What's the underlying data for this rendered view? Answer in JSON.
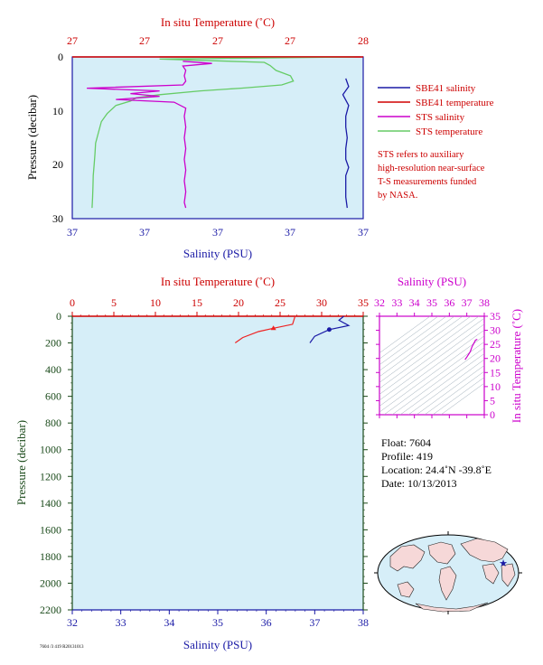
{
  "chart_data": [
    {
      "type": "line",
      "top_axis": {
        "label": "In situ Temperature (˚C)",
        "ticks": [
          "27",
          "27",
          "27",
          "27",
          "28"
        ]
      },
      "bottom_axis": {
        "label": "Salinity (PSU)",
        "ticks": [
          "37",
          "37",
          "37",
          "37",
          "37"
        ]
      },
      "left_axis": {
        "label": "Pressure (decibar)",
        "ticks": [
          "0",
          "10",
          "20",
          "30"
        ],
        "ylim": [
          0,
          30
        ]
      },
      "legend": {
        "placement": "right",
        "entries": [
          {
            "label": "SBE41 salinity",
            "color": "#1a1aa6"
          },
          {
            "label": "SBE41 temperature",
            "color": "#d00000"
          },
          {
            "label": "STS salinity",
            "color": "#cc00cc"
          },
          {
            "label": "STS temperature",
            "color": "#66cc66"
          }
        ]
      },
      "note": [
        "STS refers to auxiliary",
        "high-resolution near-surface",
        "T-S measurements funded",
        "by NASA."
      ],
      "series": [
        {
          "name": "STS temperature",
          "color": "#66cc66",
          "points": [
            [
              0.0,
              0.97
            ],
            [
              0.4,
              0.3
            ],
            [
              1.0,
              0.66
            ],
            [
              1.6,
              0.68
            ],
            [
              2.5,
              0.7
            ],
            [
              3.5,
              0.75
            ],
            [
              4.5,
              0.76
            ],
            [
              5.2,
              0.72
            ],
            [
              5.8,
              0.58
            ],
            [
              6.3,
              0.44
            ],
            [
              7.0,
              0.3
            ],
            [
              7.6,
              0.22
            ],
            [
              8.2,
              0.2
            ],
            [
              9.0,
              0.15
            ],
            [
              10.5,
              0.12
            ],
            [
              12,
              0.1
            ],
            [
              14,
              0.09
            ],
            [
              16,
              0.08
            ],
            [
              18,
              0.078
            ],
            [
              20,
              0.075
            ],
            [
              22,
              0.072
            ],
            [
              24,
              0.071
            ],
            [
              26,
              0.07
            ],
            [
              28,
              0.068
            ]
          ]
        },
        {
          "name": "SBE41 temperature",
          "color": "#d00000",
          "points": [
            [
              0.0,
              0.99
            ],
            [
              0.0,
              0.3
            ]
          ]
        },
        {
          "name": "STS salinity",
          "color": "#cc00cc",
          "points": [
            [
              0.8,
              0.38
            ],
            [
              1.2,
              0.48
            ],
            [
              1.7,
              0.38
            ],
            [
              2.5,
              0.39
            ],
            [
              3.5,
              0.385
            ],
            [
              4.5,
              0.39
            ],
            [
              5.2,
              0.38
            ],
            [
              5.8,
              0.05
            ],
            [
              6.3,
              0.3
            ],
            [
              6.8,
              0.2
            ],
            [
              7.3,
              0.3
            ],
            [
              7.9,
              0.15
            ],
            [
              8.4,
              0.35
            ],
            [
              9.5,
              0.39
            ],
            [
              11,
              0.385
            ],
            [
              13,
              0.39
            ],
            [
              15,
              0.385
            ],
            [
              17,
              0.39
            ],
            [
              19,
              0.385
            ],
            [
              21,
              0.39
            ],
            [
              23,
              0.385
            ],
            [
              25,
              0.39
            ],
            [
              27,
              0.385
            ],
            [
              28,
              0.39
            ]
          ]
        },
        {
          "name": "SBE41 salinity",
          "color": "#1a1aa6",
          "points": [
            [
              4.0,
              0.94
            ],
            [
              5.5,
              0.95
            ],
            [
              7,
              0.93
            ],
            [
              9,
              0.95
            ],
            [
              11,
              0.94
            ],
            [
              13,
              0.94
            ],
            [
              15,
              0.945
            ],
            [
              17,
              0.94
            ],
            [
              19,
              0.94
            ],
            [
              20.5,
              0.95
            ],
            [
              22,
              0.94
            ],
            [
              24,
              0.94
            ],
            [
              26,
              0.94
            ],
            [
              28,
              0.945
            ]
          ]
        }
      ]
    },
    {
      "type": "line",
      "top_axis": {
        "label": "In situ Temperature (˚C)",
        "ticks": [
          "0",
          "5",
          "10",
          "15",
          "20",
          "25",
          "30",
          "35"
        ],
        "xlim": [
          0,
          35
        ]
      },
      "bottom_axis": {
        "label": "Salinity (PSU)",
        "ticks": [
          "32",
          "33",
          "34",
          "35",
          "36",
          "37",
          "38"
        ],
        "xlim": [
          32,
          38
        ]
      },
      "left_axis": {
        "label": "Pressure (decibar)",
        "ticks": [
          "0",
          "200",
          "400",
          "600",
          "800",
          "1000",
          "1200",
          "1400",
          "1600",
          "1800",
          "2000",
          "2200"
        ],
        "ylim": [
          0,
          2200
        ]
      },
      "series": [
        {
          "name": "",
          "color": "#ee2222",
          "points": [
            [
              26.8,
              0
            ],
            [
              26.5,
              60
            ],
            [
              24.2,
              90
            ],
            [
              22.4,
              115
            ],
            [
              20.5,
              160
            ],
            [
              19.6,
              200
            ]
          ]
        },
        {
          "name": "",
          "color": "#1a1aa6",
          "points": [
            [
              37.6,
              0
            ],
            [
              37.5,
              30
            ],
            [
              37.7,
              70
            ],
            [
              37.3,
              100
            ],
            [
              37.0,
              150
            ],
            [
              36.9,
              200
            ]
          ]
        }
      ]
    },
    {
      "type": "line",
      "top_axis": {
        "label": "Salinity (PSU)",
        "ticks": [
          "32",
          "33",
          "34",
          "35",
          "36",
          "37",
          "38"
        ],
        "xlim": [
          32,
          38
        ]
      },
      "right_axis": {
        "label": "In situ Temperature (˚C)",
        "ticks": [
          "0",
          "5",
          "10",
          "15",
          "20",
          "25",
          "30",
          "35"
        ],
        "ylim": [
          0,
          35
        ]
      },
      "series": [
        {
          "name": "",
          "color": "#cc00cc",
          "points": [
            [
              36.9,
              19.6
            ],
            [
              37.0,
              20.5
            ],
            [
              37.2,
              22.4
            ],
            [
              37.3,
              24.2
            ],
            [
              37.5,
              26.5
            ],
            [
              37.6,
              26.8
            ]
          ]
        }
      ]
    }
  ],
  "float_info": {
    "float": "Float: 7604",
    "profile": "Profile: 419",
    "location": "Location: 24.4˚N -39.8˚E",
    "date": "Date: 10/13/2013"
  },
  "footer_code": "7604 /3 419 R20131013"
}
